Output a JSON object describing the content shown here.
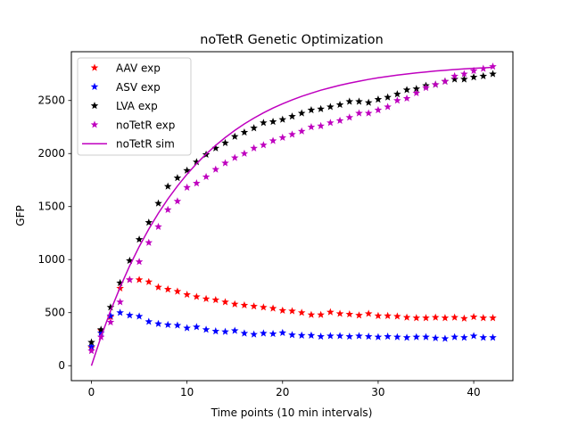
{
  "chart_data": {
    "type": "scatter",
    "title": "noTetR Genetic Optimization",
    "xlabel": "Time points (10 min intervals)",
    "ylabel": "GFP",
    "xlim": [
      -2.1,
      44.1
    ],
    "ylim": [
      -141,
      2960
    ],
    "xticks": [
      0,
      10,
      20,
      30,
      40
    ],
    "yticks": [
      0,
      500,
      1000,
      1500,
      2000,
      2500
    ],
    "grid": false,
    "legend_position": "top-left",
    "series": [
      {
        "name": "AAV exp",
        "kind": "star",
        "color": "#ff0000",
        "x": [
          0,
          1,
          2,
          3,
          4,
          5,
          6,
          7,
          8,
          9,
          10,
          11,
          12,
          13,
          14,
          15,
          16,
          17,
          18,
          19,
          20,
          21,
          22,
          23,
          24,
          25,
          26,
          27,
          28,
          29,
          30,
          31,
          32,
          33,
          34,
          35,
          36,
          37,
          38,
          39,
          40,
          41,
          42
        ],
        "values": [
          170,
          330,
          460,
          730,
          810,
          810,
          790,
          740,
          720,
          700,
          670,
          650,
          630,
          620,
          600,
          580,
          570,
          560,
          550,
          540,
          520,
          515,
          500,
          480,
          480,
          505,
          490,
          485,
          475,
          490,
          470,
          470,
          465,
          455,
          450,
          450,
          455,
          450,
          455,
          445,
          460,
          450,
          450
        ]
      },
      {
        "name": "ASV exp",
        "kind": "star",
        "color": "#0000ff",
        "x": [
          0,
          1,
          2,
          3,
          4,
          5,
          6,
          7,
          8,
          9,
          10,
          11,
          12,
          13,
          14,
          15,
          16,
          17,
          18,
          19,
          20,
          21,
          22,
          23,
          24,
          25,
          26,
          27,
          28,
          29,
          30,
          31,
          32,
          33,
          34,
          35,
          36,
          37,
          38,
          39,
          40,
          41,
          42
        ],
        "values": [
          180,
          310,
          470,
          500,
          475,
          465,
          415,
          395,
          385,
          380,
          355,
          365,
          340,
          325,
          320,
          330,
          305,
          295,
          305,
          300,
          310,
          290,
          285,
          285,
          275,
          280,
          280,
          275,
          280,
          275,
          270,
          275,
          270,
          265,
          270,
          270,
          260,
          255,
          270,
          265,
          280,
          265,
          265
        ]
      },
      {
        "name": "LVA exp",
        "kind": "star",
        "color": "#000000",
        "x": [
          0,
          1,
          2,
          3,
          4,
          5,
          6,
          7,
          8,
          9,
          10,
          11,
          12,
          13,
          14,
          15,
          16,
          17,
          18,
          19,
          20,
          21,
          22,
          23,
          24,
          25,
          26,
          27,
          28,
          29,
          30,
          31,
          32,
          33,
          34,
          35,
          36,
          37,
          38,
          39,
          40,
          41,
          42
        ],
        "values": [
          220,
          340,
          550,
          780,
          990,
          1190,
          1350,
          1530,
          1690,
          1770,
          1840,
          1920,
          1990,
          2050,
          2100,
          2160,
          2200,
          2240,
          2290,
          2300,
          2320,
          2350,
          2380,
          2410,
          2420,
          2440,
          2460,
          2490,
          2490,
          2480,
          2510,
          2530,
          2560,
          2600,
          2610,
          2640,
          2650,
          2680,
          2700,
          2700,
          2720,
          2730,
          2750
        ]
      },
      {
        "name": "noTetR exp",
        "kind": "star",
        "color": "#bf00bf",
        "x": [
          0,
          1,
          2,
          3,
          4,
          5,
          6,
          7,
          8,
          9,
          10,
          11,
          12,
          13,
          14,
          15,
          16,
          17,
          18,
          19,
          20,
          21,
          22,
          23,
          24,
          25,
          26,
          27,
          28,
          29,
          30,
          31,
          32,
          33,
          34,
          35,
          36,
          37,
          38,
          39,
          40,
          41,
          42
        ],
        "values": [
          140,
          270,
          410,
          600,
          810,
          980,
          1160,
          1310,
          1470,
          1550,
          1680,
          1720,
          1780,
          1850,
          1910,
          1960,
          2000,
          2050,
          2080,
          2120,
          2150,
          2180,
          2210,
          2250,
          2260,
          2290,
          2310,
          2340,
          2380,
          2380,
          2410,
          2440,
          2500,
          2520,
          2570,
          2620,
          2650,
          2680,
          2730,
          2750,
          2780,
          2800,
          2820
        ]
      },
      {
        "name": "noTetR sim",
        "kind": "line",
        "color": "#bf00bf",
        "x": [
          0,
          1,
          2,
          3,
          4,
          5,
          6,
          7,
          8,
          9,
          10,
          11,
          12,
          13,
          14,
          15,
          16,
          17,
          18,
          19,
          20,
          21,
          22,
          23,
          24,
          25,
          26,
          27,
          28,
          29,
          30,
          31,
          32,
          33,
          34,
          35,
          36,
          37,
          38,
          39,
          40,
          41,
          42
        ],
        "values": [
          0,
          271,
          517,
          739,
          941,
          1123,
          1288,
          1437,
          1572,
          1694,
          1805,
          1905,
          1995,
          2077,
          2151,
          2218,
          2279,
          2334,
          2384,
          2429,
          2469,
          2506,
          2539,
          2569,
          2597,
          2621,
          2644,
          2664,
          2682,
          2699,
          2714,
          2727,
          2739,
          2750,
          2760,
          2769,
          2778,
          2785,
          2792,
          2798,
          2803,
          2808,
          2813
        ]
      }
    ]
  }
}
